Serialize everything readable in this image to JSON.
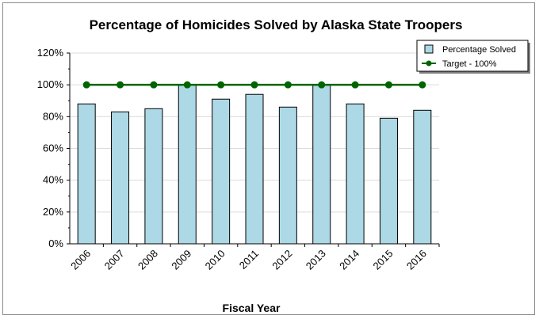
{
  "chart_data": {
    "type": "bar",
    "title": "Percentage of Homicides Solved by Alaska State Troopers",
    "xlabel": "Fiscal Year",
    "ylabel": "",
    "categories": [
      "2006",
      "2007",
      "2008",
      "2009",
      "2010",
      "2011",
      "2012",
      "2013",
      "2014",
      "2015",
      "2016"
    ],
    "series": [
      {
        "name": "Percentage Solved",
        "kind": "bar",
        "color": "#add8e6",
        "values": [
          88,
          83,
          85,
          100,
          91,
          94,
          86,
          100,
          88,
          79,
          84
        ]
      },
      {
        "name": "Target - 100%",
        "kind": "line",
        "color": "#006400",
        "values": [
          100,
          100,
          100,
          100,
          100,
          100,
          100,
          100,
          100,
          100,
          100
        ]
      }
    ],
    "ylim": [
      0,
      120
    ],
    "yticks": [
      0,
      20,
      40,
      60,
      80,
      100,
      120
    ],
    "ytick_suffix": "%",
    "grid": true,
    "legend": "top-right"
  }
}
